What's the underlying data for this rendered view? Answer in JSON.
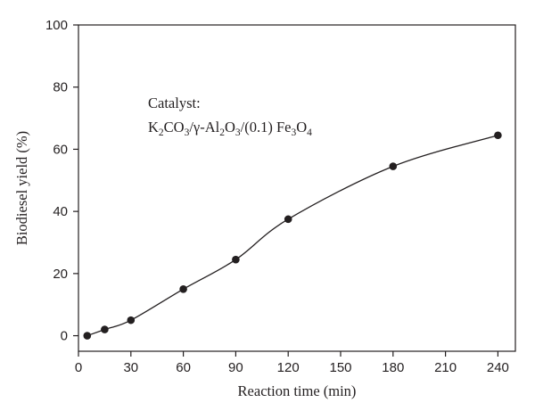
{
  "chart_data": {
    "type": "scatter",
    "title": "",
    "xlabel": "Reaction time (min)",
    "ylabel": "Biodiesel yield (%)",
    "xlim": [
      0,
      250
    ],
    "ylim": [
      -5,
      100
    ],
    "xticks": [
      "0",
      "30",
      "60",
      "90",
      "120",
      "150",
      "180",
      "210",
      "240"
    ],
    "yticks": [
      "0",
      "20",
      "40",
      "60",
      "80",
      "100"
    ],
    "grid": false,
    "legend": "none",
    "series": [
      {
        "x": [
          5,
          15,
          30,
          60,
          90,
          120,
          180,
          240
        ],
        "y": [
          0,
          2,
          5,
          15,
          24.5,
          37.5,
          54.5,
          64.5
        ],
        "marker": "filled-circle",
        "fit_curve": true,
        "color": "#231f20"
      }
    ],
    "annotation": {
      "line1": "Catalyst:",
      "k": "K",
      "k_sub": "2",
      "co": "CO",
      "co_sub": "3",
      "gamma": "/γ-Al",
      "al_sub": "2",
      "o": "O",
      "o_sub": "3",
      "fe_prefix": "/(0.1) Fe",
      "fe_sub": "3",
      "o2": "O",
      "o2_sub": "4"
    }
  }
}
